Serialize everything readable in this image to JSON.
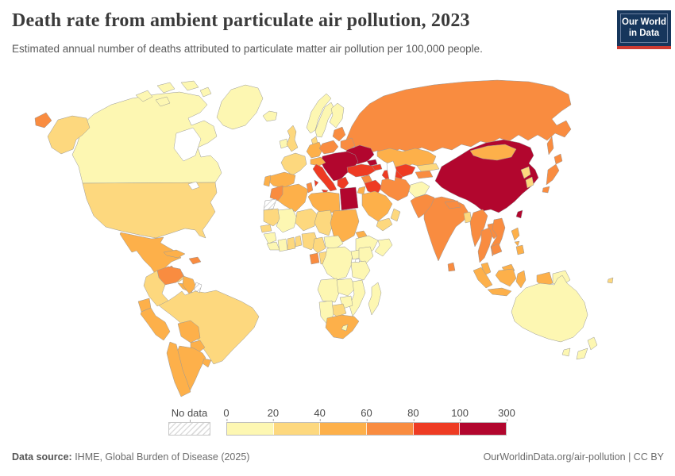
{
  "header": {
    "title": "Death rate from ambient particulate air pollution, 2023",
    "subtitle": "Estimated annual number of deaths attributed to particulate matter air pollution per 100,000 people.",
    "logo": {
      "line1": "Our World",
      "line2": "in Data",
      "bg_color": "#16365C",
      "stripe_color": "#CE3B32"
    }
  },
  "legend": {
    "no_data_label": "No data",
    "ticks": [
      "0",
      "20",
      "40",
      "60",
      "80",
      "100",
      "300"
    ],
    "bins": [
      {
        "range": "0-20",
        "color": "#FDF7B2"
      },
      {
        "range": "20-40",
        "color": "#FDD87E"
      },
      {
        "range": "40-60",
        "color": "#FDB04A"
      },
      {
        "range": "60-80",
        "color": "#F98C40"
      },
      {
        "range": "80-100",
        "color": "#EE3B23"
      },
      {
        "range": "100-300",
        "color": "#B2062E"
      }
    ]
  },
  "chart_data": {
    "type": "choropleth",
    "title": "Death rate from ambient particulate air pollution, 2023",
    "unit": "deaths per 100,000 people",
    "legend_ranges": [
      "0-20",
      "20-40",
      "40-60",
      "60-80",
      "80-100",
      "100-300"
    ],
    "no_data_regions": [
      "french-guiana",
      "western-sahara"
    ],
    "countries": {
      "canada": 0,
      "canada-arctic": 0,
      "greenland": 0,
      "iceland": 0,
      "ireland": 0,
      "norway": 0,
      "sweden": 0,
      "finland": 0,
      "afghanistan": 0,
      "mali": 0,
      "guinea": 0,
      "sierra-liberia": 0,
      "ivory-coast": 0,
      "car": 0,
      "drc": 0,
      "uganda": 0,
      "kenya": 0,
      "tanzania": 0,
      "ethiopia": 0,
      "somalia": 0,
      "angola": 0,
      "zambia": 0,
      "mozambique": 0,
      "zimbabwe": 0,
      "namibia": 0,
      "lesotho": 0,
      "madagascar": 0,
      "australia": 0,
      "new-zealand": 0,
      "png": 0,
      "usa": 1,
      "uk": 1,
      "france": 1,
      "denmark": 1,
      "honduras": 1,
      "colombia": 1,
      "brazil": 1,
      "north-korea": 1,
      "south-korea": 1,
      "bangladesh": 1,
      "yemen": 1,
      "oman": 1,
      "mauritania": 1,
      "niger": 1,
      "chad": 1,
      "senegal": 1,
      "ghana": 1,
      "benin-togo": 1,
      "nigeria": 1,
      "cameroon": 1,
      "congo": 1,
      "botswana": 1,
      "kyrgyzstan": 1,
      "fiji": 1,
      "mexico": 2,
      "cuba": 2,
      "guyana": 2,
      "ecuador": 2,
      "peru": 2,
      "bolivia": 2,
      "paraguay": 2,
      "uruguay": 2,
      "chile": 2,
      "argentina": 2,
      "costa-panama": 2,
      "spain": 2,
      "portugal": 2,
      "germany": 2,
      "austria-swiss": 2,
      "algeria": 2,
      "libya": 2,
      "sudan": 2,
      "eritrea": 2,
      "saudi-arabia": 2,
      "jordan-israel": 2,
      "kazakhstan": 2,
      "mongolia": 2,
      "malaysia": 2,
      "indonesia": 2,
      "philippines": 2,
      "south-africa": 2,
      "russia": 3,
      "venezuela": 3,
      "guatemala": 3,
      "hispaniola": 3,
      "morocco": 3,
      "tunisia": 3,
      "gabon": 3,
      "poland": 3,
      "baltics": 3,
      "belarus": 3,
      "iran": 3,
      "pakistan": 3,
      "india": 3,
      "nepal": 3,
      "sri-lanka": 3,
      "myanmar": 3,
      "thailand": 3,
      "laos": 3,
      "vietnam": 3,
      "cambodia": 3,
      "japan": 3,
      "syria": 3,
      "tajikistan": 3,
      "italy": 4,
      "greece": 4,
      "turkey": 4,
      "iraq": 4,
      "turkmenistan": 4,
      "uzbekistan": 4,
      "azerbaijan-armenia": 4,
      "china": 5,
      "taiwan": 5,
      "egypt": 5,
      "balkans": 5,
      "ukraine": 5,
      "georgia": 5,
      "french-guiana": "no_data",
      "western-sahara": "no_data"
    }
  },
  "footer": {
    "source_label": "Data source:",
    "source_text": " IHME, Global Burden of Disease (2025)",
    "link_text": "OurWorldinData.org/air-pollution | CC BY"
  }
}
